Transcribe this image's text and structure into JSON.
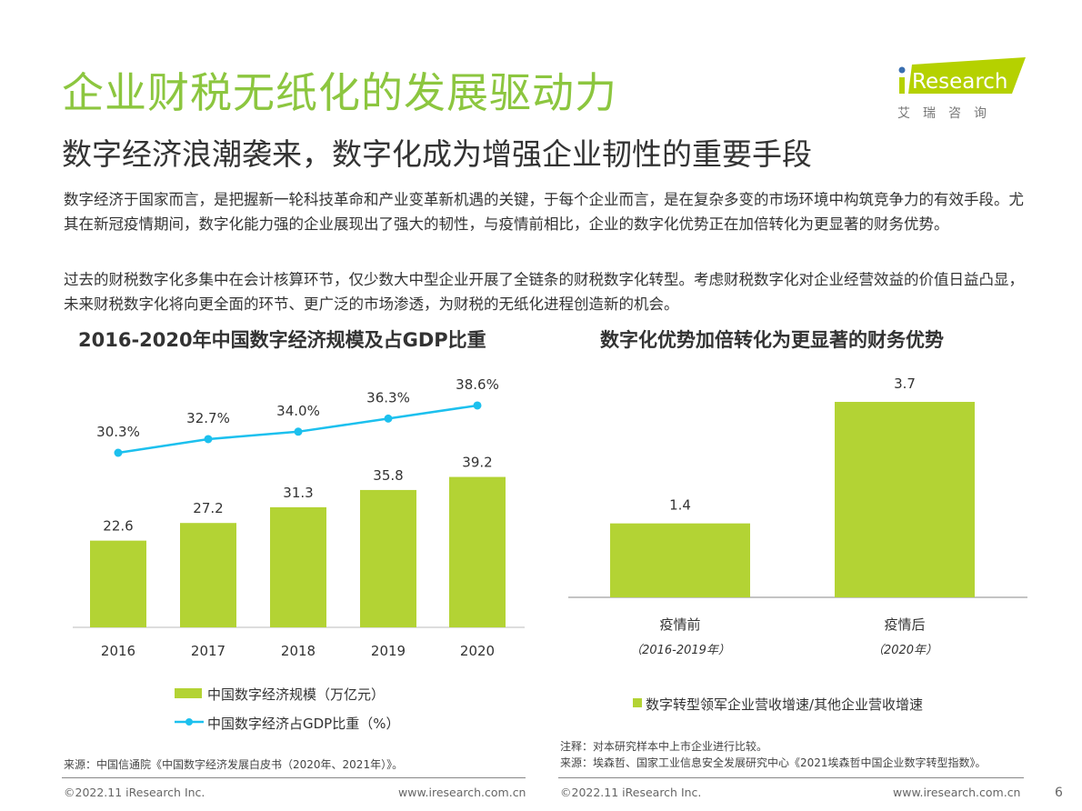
{
  "header": {
    "title": "企业财税无纸化的发展驱动力",
    "subtitle": "数字经济浪潮袭来，数字化成为增强企业韧性的重要手段"
  },
  "logo": {
    "text": "iResearch",
    "cn": "艾 瑞 咨 询",
    "brand_color": "#b5d100",
    "dot_color": "#3a6fb0"
  },
  "body": {
    "para1": "数字经济于国家而言，是把握新一轮科技革命和产业变革新机遇的关键，于每个企业而言，是在复杂多变的市场环境中构筑竞争力的有效手段。尤其在新冠疫情期间，数字化能力强的企业展现出了强大的韧性，与疫情前相比，企业的数字化优势正在加倍转化为更显著的财务优势。",
    "para2": "过去的财税数字化多集中在会计核算环节，仅少数大中型企业开展了全链条的财税数字化转型。考虑财税数字化对企业经营效益的价值日益凸显，未来财税数字化将向更全面的环节、更广泛的市场渗透，为财税的无纸化进程创造新的机会。"
  },
  "chart_data": [
    {
      "type": "bar+line",
      "title": "2016-2020年中国数字经济规模及占GDP比重",
      "categories": [
        "2016",
        "2017",
        "2018",
        "2019",
        "2020"
      ],
      "series": [
        {
          "name": "中国数字经济规模（万亿元）",
          "type": "bar",
          "values": [
            22.6,
            27.2,
            31.3,
            35.8,
            39.2
          ],
          "labels": [
            "22.6",
            "27.2",
            "31.3",
            "35.8",
            "39.2"
          ],
          "color": "#b3d334"
        },
        {
          "name": "中国数字经济占GDP比重（%）",
          "type": "line",
          "values": [
            30.3,
            32.7,
            34.0,
            36.3,
            38.6
          ],
          "labels": [
            "30.3%",
            "32.7%",
            "34.0%",
            "36.3%",
            "38.6%"
          ],
          "color": "#1cc0ee"
        }
      ],
      "source": "来源：中国信通院《中国数字经济发展白皮书（2020年、2021年）》。"
    },
    {
      "type": "bar",
      "title": "数字化优势加倍转化为更显著的财务优势",
      "categories": [
        "疫情前",
        "疫情后"
      ],
      "subcategories": [
        "（2016-2019年）",
        "（2020年）"
      ],
      "series": [
        {
          "name": "数字转型领军企业营收增速/其他企业营收增速",
          "values": [
            1.4,
            3.7
          ],
          "labels": [
            "1.4",
            "3.7"
          ],
          "color": "#b3d334"
        }
      ],
      "note": "注释：对本研究样本中上市企业进行比较。",
      "source": "来源：埃森哲、国家工业信息安全发展研究中心《2021埃森哲中国企业数字转型指数》。"
    }
  ],
  "footer": {
    "copyright": "©2022.11 iResearch Inc.",
    "url": "www.iresearch.com.cn",
    "page": "6"
  }
}
